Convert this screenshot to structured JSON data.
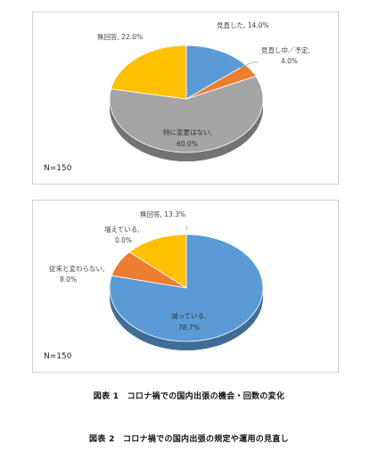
{
  "chart_data": [
    {
      "type": "pie",
      "slices": [
        {
          "name": "見直した",
          "value": 14.0,
          "label": "見直した, 14.0%",
          "color": "#5b9bd5"
        },
        {
          "name": "見直し中／予定",
          "value": 4.0,
          "label_line1": "見直し中／予定,",
          "label_line2": "4.0%",
          "color": "#ed7d31"
        },
        {
          "name": "特に変更はない",
          "value": 60.0,
          "label_line1": "特に変更はない,",
          "label_line2": "60.0%",
          "color": "#a5a5a5"
        },
        {
          "name": "無回答",
          "value": 22.0,
          "label": "無回答, 22.0%",
          "color": "#ffc000"
        }
      ],
      "note": "N=150"
    },
    {
      "type": "pie",
      "slices": [
        {
          "name": "減っている",
          "value": 78.7,
          "label_line1": "減っている,",
          "label_line2": "78.7%",
          "color": "#5b9bd5"
        },
        {
          "name": "従来と変わらない",
          "value": 8.0,
          "label_line1": "従来と変わらない,",
          "label_line2": "8.0%",
          "color": "#ed7d31"
        },
        {
          "name": "増えている",
          "value": 0.0,
          "label_line1": "増えている,",
          "label_line2": "0.0%",
          "color": "#a5a5a5"
        },
        {
          "name": "無回答",
          "value": 13.3,
          "label": "無回答, 13.3%",
          "color": "#ffc000"
        }
      ],
      "note": "N=150"
    }
  ],
  "captions": {
    "first": "図表 1　コロナ禍での国内出張の機会・回数の変化",
    "second": "図表 2　コロナ禍での国内出張の規定や運用の見直し"
  }
}
